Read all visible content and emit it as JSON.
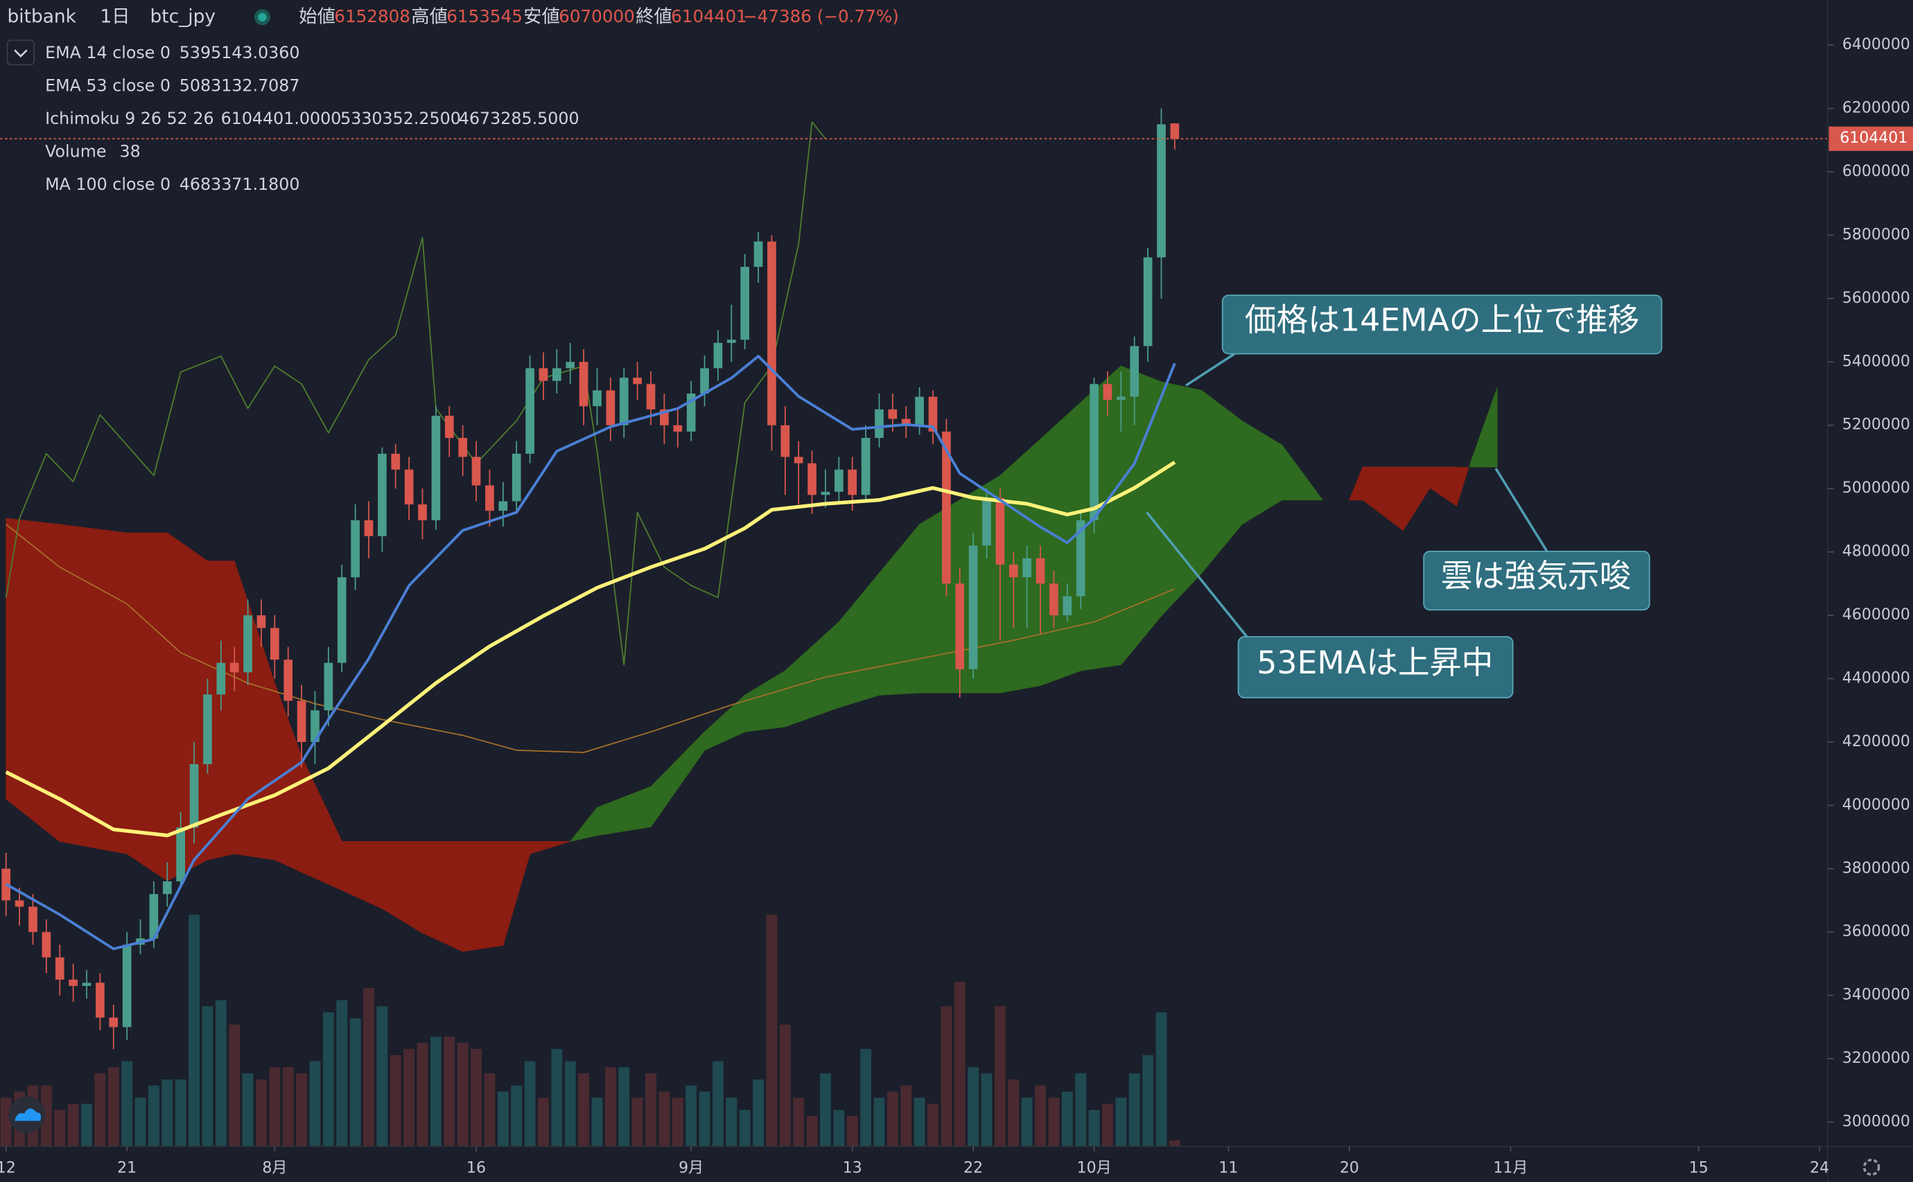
{
  "chart_data": {
    "type": "candlestick",
    "symbol": "bitbank",
    "interval": "1日",
    "pair": "btc_jpy",
    "ohlc_labels": [
      "始値",
      "高値",
      "安値",
      "終値"
    ],
    "change_label": "−47386 (−0.77%)",
    "xlim": [
      -0.45,
      135.6
    ],
    "ylim": [
      2923000,
      6542000
    ],
    "xticks": [
      {
        "value": 0,
        "label": "12"
      },
      {
        "value": 9,
        "label": "21"
      },
      {
        "value": 20,
        "label": "8月"
      },
      {
        "value": 35,
        "label": "16"
      },
      {
        "value": 51,
        "label": "9月"
      },
      {
        "value": 63,
        "label": "13"
      },
      {
        "value": 72,
        "label": "22"
      },
      {
        "value": 81,
        "label": "10月"
      },
      {
        "value": 91,
        "label": "11"
      },
      {
        "value": 100,
        "label": "20"
      },
      {
        "value": 112,
        "label": "11月"
      },
      {
        "value": 126,
        "label": "15"
      },
      {
        "value": 135,
        "label": "24"
      }
    ],
    "yticks": [
      3000000,
      3200000,
      3400000,
      3600000,
      3800000,
      4000000,
      4200000,
      4400000,
      4600000,
      4800000,
      5000000,
      5200000,
      5400000,
      5600000,
      5800000,
      6000000,
      6200000,
      6400000
    ],
    "candles": {
      "up_color": "#4a9e8c",
      "down_color": "#d9574d",
      "x": [
        0,
        1,
        2,
        3,
        4,
        5,
        6,
        7,
        8,
        9,
        10,
        11,
        12,
        13,
        14,
        15,
        16,
        17,
        18,
        19,
        20,
        21,
        22,
        23,
        24,
        25,
        26,
        27,
        28,
        29,
        30,
        31,
        32,
        33,
        34,
        35,
        36,
        37,
        38,
        39,
        40,
        41,
        42,
        43,
        44,
        45,
        46,
        47,
        48,
        49,
        50,
        51,
        52,
        53,
        54,
        55,
        56,
        57,
        58,
        59,
        60,
        61,
        62,
        63,
        64,
        65,
        66,
        67,
        68,
        69,
        70,
        71,
        72,
        73,
        74,
        75,
        76,
        77,
        78,
        79,
        80,
        81,
        82,
        83,
        84,
        85,
        86,
        87
      ],
      "open": [
        3800000,
        3700000,
        3680000,
        3600000,
        3520000,
        3450000,
        3430000,
        3440000,
        3330000,
        3300000,
        3560000,
        3580000,
        3720000,
        3760000,
        3930000,
        4130000,
        4350000,
        4450000,
        4420000,
        4600000,
        4560000,
        4460000,
        4330000,
        4200000,
        4300000,
        4450000,
        4720000,
        4900000,
        4850000,
        5110000,
        5060000,
        4950000,
        4900000,
        5230000,
        5160000,
        5100000,
        5010000,
        4930000,
        4960000,
        5110000,
        5380000,
        5340000,
        5380000,
        5400000,
        5260000,
        5310000,
        5200000,
        5350000,
        5330000,
        5250000,
        5200000,
        5180000,
        5300000,
        5380000,
        5460000,
        5470000,
        5700000,
        5780000,
        5200000,
        5100000,
        5080000,
        4980000,
        4990000,
        5060000,
        4980000,
        5160000,
        5250000,
        5220000,
        5200000,
        5290000,
        5180000,
        4700000,
        4430000,
        4820000,
        4970000,
        4760000,
        4720000,
        4780000,
        4700000,
        4600000,
        4660000,
        4900000,
        5330000,
        5280000,
        5290000,
        5450000,
        5730000,
        6152808
      ],
      "high": [
        3850000,
        3740000,
        3720000,
        3640000,
        3560000,
        3500000,
        3480000,
        3470000,
        3370000,
        3600000,
        3640000,
        3760000,
        3820000,
        3980000,
        4200000,
        4400000,
        4520000,
        4500000,
        4650000,
        4650000,
        4600000,
        4500000,
        4380000,
        4360000,
        4500000,
        4760000,
        4950000,
        4960000,
        5130000,
        5140000,
        5100000,
        5000000,
        5260000,
        5260000,
        5200000,
        5150000,
        5060000,
        5020000,
        5150000,
        5420000,
        5430000,
        5440000,
        5460000,
        5440000,
        5380000,
        5350000,
        5380000,
        5400000,
        5370000,
        5300000,
        5250000,
        5340000,
        5420000,
        5500000,
        5580000,
        5740000,
        5810000,
        5800000,
        5260000,
        5150000,
        5120000,
        5060000,
        5100000,
        5100000,
        5200000,
        5300000,
        5300000,
        5260000,
        5320000,
        5310000,
        5220000,
        4750000,
        4860000,
        5000000,
        5000000,
        4800000,
        4820000,
        4820000,
        4740000,
        4700000,
        4930000,
        5350000,
        5370000,
        5370000,
        5480000,
        5760000,
        6200000,
        6153545
      ],
      "low": [
        3650000,
        3620000,
        3560000,
        3470000,
        3400000,
        3380000,
        3390000,
        3290000,
        3230000,
        3260000,
        3530000,
        3550000,
        3680000,
        3740000,
        3880000,
        4100000,
        4300000,
        4360000,
        4380000,
        4500000,
        4400000,
        4280000,
        4120000,
        4130000,
        4250000,
        4420000,
        4680000,
        4780000,
        4800000,
        5000000,
        4900000,
        4840000,
        4870000,
        5100000,
        5040000,
        4960000,
        4880000,
        4880000,
        4920000,
        5080000,
        5280000,
        5300000,
        5330000,
        5200000,
        5200000,
        5150000,
        5160000,
        5280000,
        5200000,
        5140000,
        5130000,
        5150000,
        5260000,
        5340000,
        5400000,
        5440000,
        5650000,
        5120000,
        4980000,
        4950000,
        4920000,
        4940000,
        4950000,
        4930000,
        4960000,
        5130000,
        5180000,
        5160000,
        5170000,
        5140000,
        4660000,
        4340000,
        4400000,
        4780000,
        4520000,
        4560000,
        4560000,
        4540000,
        4560000,
        4580000,
        4620000,
        4860000,
        5230000,
        5180000,
        5200000,
        5400000,
        5600000,
        6070000
      ],
      "close": [
        3700000,
        3680000,
        3600000,
        3520000,
        3450000,
        3430000,
        3440000,
        3330000,
        3300000,
        3560000,
        3580000,
        3720000,
        3760000,
        3930000,
        4130000,
        4350000,
        4450000,
        4420000,
        4600000,
        4560000,
        4460000,
        4330000,
        4200000,
        4300000,
        4450000,
        4720000,
        4900000,
        4850000,
        5110000,
        5060000,
        4950000,
        4900000,
        5230000,
        5160000,
        5100000,
        5010000,
        4930000,
        4960000,
        5110000,
        5380000,
        5340000,
        5380000,
        5400000,
        5260000,
        5310000,
        5200000,
        5350000,
        5330000,
        5250000,
        5200000,
        5180000,
        5300000,
        5380000,
        5460000,
        5470000,
        5700000,
        5780000,
        5200000,
        5100000,
        5080000,
        4980000,
        4990000,
        5060000,
        4980000,
        5160000,
        5250000,
        5220000,
        5200000,
        5290000,
        5180000,
        4700000,
        4430000,
        4820000,
        4970000,
        4760000,
        4720000,
        4780000,
        4700000,
        4600000,
        4660000,
        4900000,
        5330000,
        5280000,
        5290000,
        5450000,
        5730000,
        6150000,
        6104401
      ]
    },
    "volume": {
      "name": "Volume",
      "up_color": "#1f4a52",
      "down_color": "#4a2a30",
      "value_color": "#e0574c",
      "values": [
        304,
        342,
        380,
        380,
        228,
        266,
        266,
        456,
        494,
        532,
        304,
        380,
        418,
        418,
        1444,
        874,
        912,
        760,
        456,
        418,
        494,
        494,
        456,
        532,
        836,
        912,
        798,
        988,
        874,
        570,
        608,
        646,
        684,
        684,
        646,
        608,
        456,
        342,
        380,
        532,
        304,
        608,
        532,
        456,
        304,
        494,
        494,
        304,
        456,
        342,
        304,
        380,
        342,
        532,
        304,
        228,
        418,
        1444,
        760,
        304,
        190,
        456,
        228,
        190,
        608,
        304,
        342,
        380,
        304,
        266,
        874,
        1026,
        494,
        456,
        874,
        418,
        304,
        380,
        304,
        342,
        456,
        228,
        266,
        304,
        456,
        570,
        836,
        38
      ]
    },
    "series": [
      {
        "name": "EMA 14 close 0",
        "color": "#4a7fd4",
        "value_color": "#4d8ee0",
        "value_label": "5395143.0360",
        "width": 2.2,
        "x": [
          0,
          4,
          8,
          11,
          14,
          18,
          22,
          24,
          27,
          30,
          34,
          38,
          41,
          45,
          50,
          54,
          56,
          59,
          63,
          67,
          69,
          71,
          74,
          77,
          79,
          81,
          84,
          87
        ],
        "values": [
          3751000,
          3655000,
          3547000,
          3578000,
          3828000,
          4020000,
          4136000,
          4271000,
          4463000,
          4694000,
          4868000,
          4925000,
          5118000,
          5195000,
          5253000,
          5349000,
          5418000,
          5291000,
          5187000,
          5202000,
          5195000,
          5048000,
          4964000,
          4879000,
          4829000,
          4906000,
          5079000,
          5395143
        ]
      },
      {
        "name": "EMA 53 close 0",
        "color": "#fff27a",
        "value_color": "#fff27a",
        "value_label": "5083132.7087",
        "width": 3,
        "x": [
          0,
          4,
          8,
          12,
          16,
          20,
          24,
          28,
          32,
          36,
          40,
          44,
          48,
          52,
          55,
          57,
          61,
          65,
          69,
          72,
          76,
          79,
          81,
          84,
          87
        ],
        "values": [
          4105000,
          4020000,
          3924000,
          3905000,
          3970000,
          4032000,
          4117000,
          4251000,
          4386000,
          4502000,
          4598000,
          4687000,
          4752000,
          4810000,
          4875000,
          4933000,
          4952000,
          4964000,
          5002000,
          4971000,
          4952000,
          4918000,
          4937000,
          5002000,
          5083133
        ]
      },
      {
        "name": "MA 100 close 0",
        "color": "#a8702a",
        "value_color": "#f0b840",
        "value_label": "4683371.1800",
        "width": 1,
        "x": [
          0,
          4,
          9,
          13,
          18,
          23,
          28,
          34,
          38,
          43,
          48,
          54,
          61,
          68,
          75,
          81,
          87
        ],
        "values": [
          4887000,
          4752000,
          4636000,
          4482000,
          4386000,
          4321000,
          4271000,
          4221000,
          4174000,
          4167000,
          4232000,
          4317000,
          4405000,
          4463000,
          4521000,
          4579000,
          4683371
        ]
      }
    ],
    "ichimoku": {
      "name": "Ichimoku 9 26 52 26",
      "value_labels": [
        "6104401.0000",
        "5330352.2500",
        "4673285.5000"
      ],
      "value_colors": [
        "#5eae3a",
        "#5eae3a",
        "#e0574c"
      ],
      "bull_color": "#2e6a1f",
      "bear_color": "#8b1d12",
      "lagging": {
        "color": "#4e7f2c",
        "x": [
          0,
          1,
          3,
          5,
          7,
          9,
          11,
          13,
          16,
          18,
          20,
          22,
          24,
          27,
          29,
          31,
          32,
          35,
          38,
          40,
          43,
          44,
          46,
          47,
          49,
          51,
          53,
          55,
          57,
          59,
          60,
          61
        ],
        "values": [
          4656000,
          4906000,
          5110000,
          5022000,
          5233000,
          5137000,
          5041000,
          5368000,
          5418000,
          5253000,
          5387000,
          5330000,
          5176000,
          5407000,
          5484000,
          5792000,
          5253000,
          5079000,
          5214000,
          5349000,
          5387000,
          5118000,
          4444000,
          4925000,
          4752000,
          4694000,
          4656000,
          5272000,
          5387000,
          5772000,
          6157000,
          6104401
        ]
      },
      "span_x": [
        0,
        4,
        9,
        12,
        15,
        17,
        20,
        22,
        25,
        28,
        31,
        34,
        37,
        39,
        42,
        44,
        48,
        52,
        55,
        58,
        62,
        65,
        68,
        71,
        74,
        77,
        80,
        83,
        86,
        89,
        92,
        95,
        98,
        100,
        101,
        104,
        106,
        108,
        109,
        111
      ],
      "span_a": [
        4020000,
        3886000,
        3847000,
        3762000,
        3828000,
        3847000,
        3828000,
        3789000,
        3732000,
        3674000,
        3597000,
        3539000,
        3558000,
        3847000,
        3886000,
        3993000,
        4059000,
        4232000,
        4348000,
        4425000,
        4579000,
        4733000,
        4887000,
        4964000,
        5041000,
        5156000,
        5272000,
        5387000,
        5337000,
        5310000,
        5214000,
        5137000,
        4964000,
        4964000,
        4964000,
        4868000,
        5002000,
        4945000,
        5079000,
        5318000
      ],
      "span_b": [
        4906000,
        4887000,
        4860000,
        4860000,
        4771000,
        4771000,
        4386000,
        4155000,
        3886000,
        3886000,
        3886000,
        3886000,
        3886000,
        3886000,
        3886000,
        3905000,
        3932000,
        4174000,
        4232000,
        4248000,
        4309000,
        4348000,
        4355000,
        4355000,
        4355000,
        4378000,
        4425000,
        4444000,
        4598000,
        4733000,
        4887000,
        4964000,
        4964000,
        4964000,
        5068000,
        5068000,
        5068000,
        5068000,
        5068000,
        5068000
      ]
    },
    "annotations": [
      {
        "text": "価格は14EMAの上位で推移"
      },
      {
        "text": "雲は強気示唆"
      },
      {
        "text": "53EMAは上昇中"
      }
    ]
  }
}
